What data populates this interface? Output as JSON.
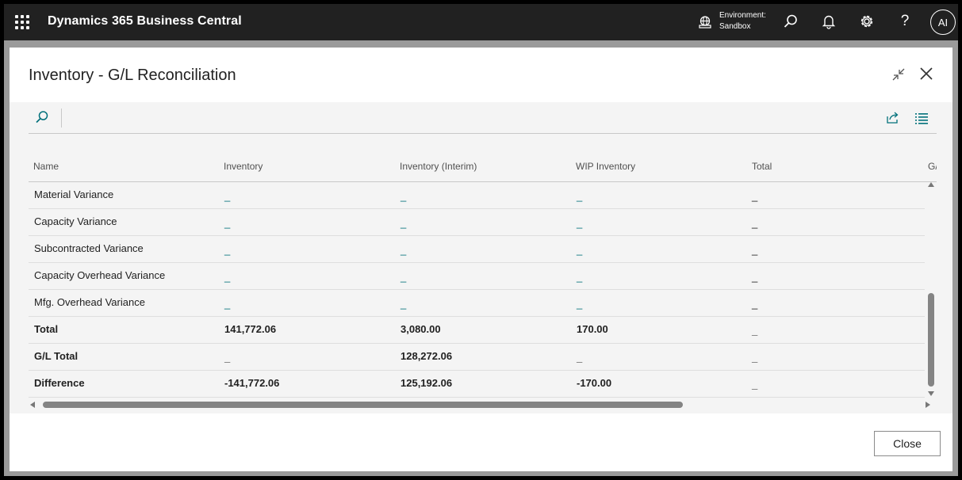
{
  "app": {
    "title": "Dynamics 365 Business Central",
    "environment_label": "Environment:",
    "environment_value": "Sandbox",
    "avatar_initials": "AI",
    "icons": [
      "app-launcher-icon",
      "environment-icon",
      "search-icon",
      "bell-icon",
      "gear-icon",
      "help-icon"
    ]
  },
  "dialog": {
    "title": "Inventory - G/L Reconciliation",
    "close_button": "Close"
  },
  "grid": {
    "columns": [
      "Name",
      "Inventory",
      "Inventory (Interim)",
      "WIP Inventory",
      "Total",
      "G/"
    ],
    "rows": [
      {
        "name": "Material Variance",
        "inventory": "_",
        "interim": "_",
        "wip": "_",
        "total": "_",
        "bold": false,
        "links": true
      },
      {
        "name": "Capacity Variance",
        "inventory": "_",
        "interim": "_",
        "wip": "_",
        "total": "_",
        "bold": false,
        "links": true
      },
      {
        "name": "Subcontracted Variance",
        "inventory": "_",
        "interim": "_",
        "wip": "_",
        "total": "_",
        "bold": false,
        "links": true
      },
      {
        "name": "Capacity Overhead Variance",
        "inventory": "_",
        "interim": "_",
        "wip": "_",
        "total": "_",
        "bold": false,
        "links": true
      },
      {
        "name": "Mfg. Overhead Variance",
        "inventory": "_",
        "interim": "_",
        "wip": "_",
        "total": "_",
        "bold": false,
        "links": true
      },
      {
        "name": "Total",
        "inventory": "141,772.06",
        "interim": "3,080.00",
        "wip": "170.00",
        "total": "_",
        "bold": true,
        "links": false
      },
      {
        "name": "G/L Total",
        "inventory": "_",
        "interim": "128,272.06",
        "wip": "_",
        "total": "_",
        "bold": true,
        "links": false
      },
      {
        "name": "Difference",
        "inventory": "-141,772.06",
        "interim": "125,192.06",
        "wip": "-170.00",
        "total": "_",
        "bold": true,
        "links": false
      }
    ]
  },
  "colors": {
    "topbar": "#212121",
    "accent": "#00707a",
    "scroll_thumb": "#848484"
  }
}
